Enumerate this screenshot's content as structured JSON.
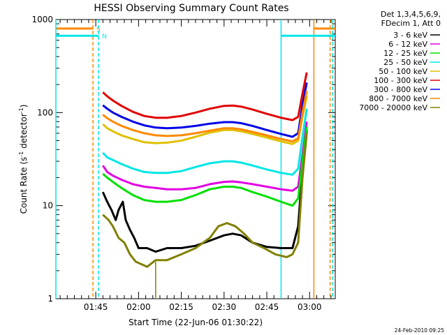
{
  "chart_data": {
    "type": "line",
    "title": "HESSI Observing Summary Count Rates",
    "xlabel": "Start Time (22-Jun-06 01:30:22)",
    "ylabel": "Count Rate (s",
    "ylabel_sup1": "-1",
    "ylabel_mid": " detector",
    "ylabel_sup2": "-1",
    "ylabel_end": ")",
    "footer": "24-Feb-2010 09:25",
    "x_unit": "minutes since 01:30",
    "xlim": [
      1.0,
      99.0
    ],
    "ylim": [
      1,
      1000
    ],
    "y_scale": "log",
    "x_ticks": [
      {
        "value": 15,
        "label": "01:45"
      },
      {
        "value": 30,
        "label": "02:00"
      },
      {
        "value": 45,
        "label": "02:15"
      },
      {
        "value": 60,
        "label": "02:30"
      },
      {
        "value": 75,
        "label": "02:45"
      },
      {
        "value": 90,
        "label": "03:00"
      }
    ],
    "x_minor_step": 2.5,
    "y_ticks": [
      {
        "value": 1,
        "label": "1"
      },
      {
        "value": 10,
        "label": "10"
      },
      {
        "value": 100,
        "label": "100"
      },
      {
        "value": 1000,
        "label": "1000"
      }
    ],
    "legend": {
      "placement": "top-right",
      "header": [
        "Det 1,3,4,5,6,9,",
        "FDecim 1, Att 0"
      ]
    },
    "series": [
      {
        "name": "3 - 6 keV",
        "color": "#000000",
        "points": [
          [
            17.5,
            14
          ],
          [
            19,
            11
          ],
          [
            20.5,
            9
          ],
          [
            22,
            7
          ],
          [
            23,
            9
          ],
          [
            24.5,
            11
          ],
          [
            25.5,
            7
          ],
          [
            27,
            5.5
          ],
          [
            28.5,
            4.5
          ],
          [
            30,
            3.5
          ],
          [
            33,
            3.5
          ],
          [
            36,
            3.2
          ],
          [
            40,
            3.5
          ],
          [
            45,
            3.5
          ],
          [
            50,
            3.7
          ],
          [
            55,
            4.2
          ],
          [
            60,
            4.8
          ],
          [
            63,
            5
          ],
          [
            66,
            4.8
          ],
          [
            70,
            4
          ],
          [
            75,
            3.6
          ],
          [
            80,
            3.5
          ],
          [
            84,
            3.5
          ],
          [
            86,
            6
          ],
          [
            87.5,
            25
          ],
          [
            89,
            65
          ]
        ]
      },
      {
        "name": "6 - 12 keV",
        "color": "#e200e2",
        "points": [
          [
            17.5,
            27
          ],
          [
            19,
            23
          ],
          [
            21,
            21
          ],
          [
            24,
            19
          ],
          [
            28,
            17
          ],
          [
            32,
            16
          ],
          [
            36,
            15.5
          ],
          [
            40,
            15
          ],
          [
            45,
            15
          ],
          [
            50,
            15.5
          ],
          [
            55,
            17
          ],
          [
            60,
            18
          ],
          [
            63,
            18.2
          ],
          [
            66,
            17.8
          ],
          [
            70,
            17
          ],
          [
            75,
            16
          ],
          [
            80,
            15
          ],
          [
            84,
            14.5
          ],
          [
            86,
            16
          ],
          [
            87.5,
            35
          ],
          [
            89,
            80
          ]
        ]
      },
      {
        "name": "12 - 25 keV",
        "color": "#00e000",
        "points": [
          [
            17.5,
            22
          ],
          [
            19,
            20
          ],
          [
            21,
            18
          ],
          [
            24,
            15.5
          ],
          [
            28,
            13
          ],
          [
            32,
            11.5
          ],
          [
            36,
            11
          ],
          [
            40,
            11
          ],
          [
            45,
            11.5
          ],
          [
            50,
            13
          ],
          [
            55,
            15
          ],
          [
            60,
            16
          ],
          [
            63,
            16
          ],
          [
            66,
            15.5
          ],
          [
            70,
            14
          ],
          [
            75,
            12.5
          ],
          [
            80,
            11
          ],
          [
            84,
            10
          ],
          [
            86,
            12
          ],
          [
            87.5,
            30
          ],
          [
            89,
            70
          ]
        ]
      },
      {
        "name": "25 - 50 keV",
        "color": "#00e6e6",
        "points": [
          [
            17.5,
            37
          ],
          [
            19,
            33
          ],
          [
            21,
            31
          ],
          [
            24,
            28
          ],
          [
            28,
            25
          ],
          [
            32,
            23
          ],
          [
            36,
            22.5
          ],
          [
            40,
            22.5
          ],
          [
            45,
            23.5
          ],
          [
            50,
            26
          ],
          [
            55,
            28.5
          ],
          [
            60,
            30
          ],
          [
            63,
            30
          ],
          [
            66,
            29
          ],
          [
            70,
            27
          ],
          [
            75,
            24.5
          ],
          [
            80,
            22.5
          ],
          [
            84,
            21.5
          ],
          [
            86,
            25
          ],
          [
            87.5,
            55
          ],
          [
            89,
            110
          ]
        ]
      },
      {
        "name": "50 - 100 keV",
        "color": "#e0c000",
        "points": [
          [
            17.5,
            75
          ],
          [
            19,
            68
          ],
          [
            21,
            63
          ],
          [
            24,
            57
          ],
          [
            28,
            52
          ],
          [
            32,
            48
          ],
          [
            36,
            47
          ],
          [
            40,
            47.5
          ],
          [
            45,
            50
          ],
          [
            50,
            55
          ],
          [
            55,
            61
          ],
          [
            60,
            65
          ],
          [
            63,
            65
          ],
          [
            66,
            63
          ],
          [
            70,
            59
          ],
          [
            75,
            54
          ],
          [
            80,
            49
          ],
          [
            84,
            46
          ],
          [
            86,
            50
          ],
          [
            87.5,
            90
          ],
          [
            89,
            150
          ]
        ]
      },
      {
        "name": "100 - 300 keV",
        "color": "#e00000",
        "points": [
          [
            17.5,
            165
          ],
          [
            19,
            150
          ],
          [
            21,
            135
          ],
          [
            24,
            118
          ],
          [
            28,
            102
          ],
          [
            32,
            92
          ],
          [
            36,
            88
          ],
          [
            40,
            88
          ],
          [
            45,
            92
          ],
          [
            50,
            100
          ],
          [
            55,
            110
          ],
          [
            60,
            118
          ],
          [
            63,
            119
          ],
          [
            66,
            116
          ],
          [
            70,
            108
          ],
          [
            75,
            97
          ],
          [
            80,
            88
          ],
          [
            84,
            83
          ],
          [
            86,
            90
          ],
          [
            87.5,
            160
          ],
          [
            89,
            270
          ]
        ]
      },
      {
        "name": "300 - 800 keV",
        "color": "#0000e6",
        "points": [
          [
            17.5,
            120
          ],
          [
            19,
            110
          ],
          [
            21,
            100
          ],
          [
            24,
            90
          ],
          [
            28,
            80
          ],
          [
            32,
            73
          ],
          [
            36,
            69
          ],
          [
            40,
            68
          ],
          [
            45,
            69
          ],
          [
            50,
            72
          ],
          [
            55,
            76
          ],
          [
            60,
            79
          ],
          [
            63,
            79
          ],
          [
            66,
            77
          ],
          [
            70,
            72
          ],
          [
            75,
            65
          ],
          [
            80,
            59
          ],
          [
            84,
            55
          ],
          [
            86,
            60
          ],
          [
            87.5,
            120
          ],
          [
            89,
            210
          ]
        ]
      },
      {
        "name": "800 - 7000 keV",
        "color": "#ff8800",
        "points": [
          [
            17.5,
            95
          ],
          [
            19,
            87
          ],
          [
            21,
            80
          ],
          [
            24,
            72
          ],
          [
            28,
            65
          ],
          [
            32,
            60
          ],
          [
            36,
            57
          ],
          [
            40,
            56
          ],
          [
            45,
            57
          ],
          [
            50,
            60
          ],
          [
            55,
            64
          ],
          [
            60,
            68
          ],
          [
            63,
            68
          ],
          [
            66,
            66
          ],
          [
            70,
            62
          ],
          [
            75,
            57
          ],
          [
            80,
            52
          ],
          [
            84,
            49
          ],
          [
            86,
            53
          ],
          [
            87.5,
            100
          ],
          [
            89,
            170
          ]
        ]
      },
      {
        "name": "7000 - 20000 keV",
        "color": "#808000",
        "points": [
          [
            17.5,
            8
          ],
          [
            19.5,
            7
          ],
          [
            21,
            6
          ],
          [
            23,
            4.5
          ],
          [
            25,
            4
          ],
          [
            27,
            3
          ],
          [
            29,
            2.5
          ],
          [
            33,
            2.2
          ],
          [
            36,
            2.6
          ],
          [
            40,
            2.6
          ],
          [
            45,
            3
          ],
          [
            50,
            3.5
          ],
          [
            55,
            4.5
          ],
          [
            58,
            6
          ],
          [
            61,
            6.5
          ],
          [
            64,
            6
          ],
          [
            67,
            5
          ],
          [
            70,
            4
          ],
          [
            74,
            3.5
          ],
          [
            78,
            3
          ],
          [
            82,
            2.8
          ],
          [
            84,
            3
          ],
          [
            86,
            4
          ],
          [
            87.5,
            20
          ],
          [
            89,
            60
          ]
        ]
      }
    ],
    "flags": [
      {
        "name": "S",
        "color": "#ff8800",
        "level": 800,
        "dashed_x": [
          14.0,
          97.2
        ],
        "span": [
          [
            1.0,
            14.0
          ],
          [
            91.5,
            99.0
          ]
        ],
        "solid_x": [
          91.5
        ]
      },
      {
        "name": "N",
        "color": "#00e6e6",
        "level": 670,
        "dashed_x": [
          16.0,
          98.0
        ],
        "span": [
          [
            1.0,
            16.0
          ],
          [
            80.0,
            99.0
          ]
        ],
        "solid_x": [
          1.0,
          80.0
        ]
      }
    ],
    "events": [
      {
        "color": "#808000",
        "x": 36.0,
        "ybottom": 1,
        "ytop": 2.5
      }
    ]
  }
}
